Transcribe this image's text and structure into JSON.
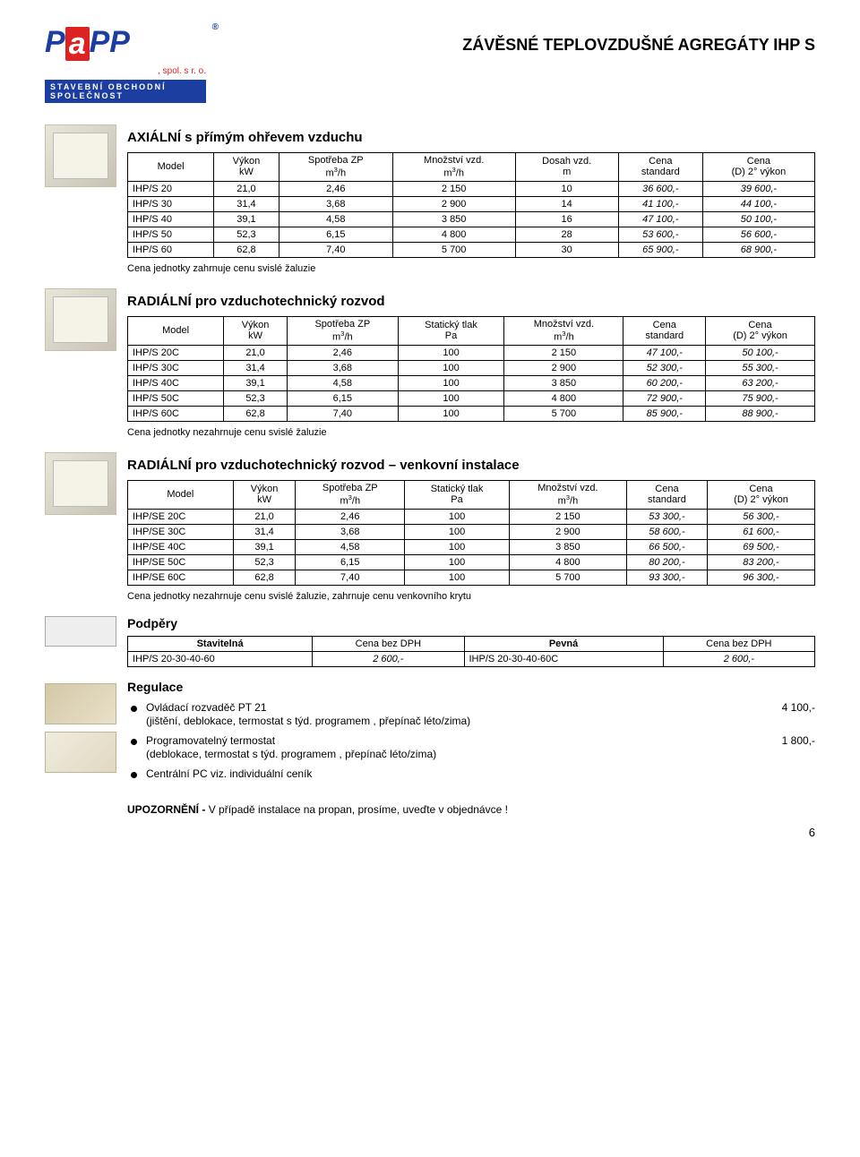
{
  "header": {
    "logo_text": "PaPP",
    "logo_sub": ", spol. s r. o.",
    "logo_tagline": "STAVEBNÍ  OBCHODNÍ  SPOLEČNOST",
    "doc_title": "ZÁVĚSNÉ TEPLOVZDUŠNÉ AGREGÁTY IHP S"
  },
  "sections": {
    "axial": {
      "title": "AXIÁLNÍ s přímým ohřevem vzduchu",
      "headers": [
        "Model",
        "Výkon\nkW",
        "Spotřeba ZP\nm³/h",
        "Množství vzd.\nm³/h",
        "Dosah vzd.\nm",
        "Cena\nstandard",
        "Cena\n(D) 2° výkon"
      ],
      "rows": [
        [
          "IHP/S 20",
          "21,0",
          "2,46",
          "2 150",
          "10",
          "36 600,-",
          "39 600,-"
        ],
        [
          "IHP/S 30",
          "31,4",
          "3,68",
          "2 900",
          "14",
          "41 100,-",
          "44 100,-"
        ],
        [
          "IHP/S 40",
          "39,1",
          "4,58",
          "3 850",
          "16",
          "47 100,-",
          "50 100,-"
        ],
        [
          "IHP/S 50",
          "52,3",
          "6,15",
          "4 800",
          "28",
          "53 600,-",
          "56 600,-"
        ],
        [
          "IHP/S 60",
          "62,8",
          "7,40",
          "5 700",
          "30",
          "65 900,-",
          "68 900,-"
        ]
      ],
      "note": "Cena jednotky zahrnuje cenu svislé žaluzie"
    },
    "radial": {
      "title": "RADIÁLNÍ pro vzduchotechnický rozvod",
      "headers": [
        "Model",
        "Výkon\nkW",
        "Spotřeba ZP\nm³/h",
        "Statický tlak\nPa",
        "Množství vzd.\nm³/h",
        "Cena\nstandard",
        "Cena\n(D) 2° výkon"
      ],
      "rows": [
        [
          "IHP/S 20C",
          "21,0",
          "2,46",
          "100",
          "2 150",
          "47 100,-",
          "50 100,-"
        ],
        [
          "IHP/S 30C",
          "31,4",
          "3,68",
          "100",
          "2 900",
          "52 300,-",
          "55 300,-"
        ],
        [
          "IHP/S 40C",
          "39,1",
          "4,58",
          "100",
          "3 850",
          "60 200,-",
          "63 200,-"
        ],
        [
          "IHP/S 50C",
          "52,3",
          "6,15",
          "100",
          "4 800",
          "72 900,-",
          "75 900,-"
        ],
        [
          "IHP/S 60C",
          "62,8",
          "7,40",
          "100",
          "5 700",
          "85 900,-",
          "88 900,-"
        ]
      ],
      "note": "Cena jednotky nezahrnuje cenu svislé žaluzie"
    },
    "radial_ext": {
      "title": "RADIÁLNÍ pro vzduchotechnický rozvod – venkovní instalace",
      "headers": [
        "Model",
        "Výkon\nkW",
        "Spotřeba ZP\nm³/h",
        "Statický tlak\nPa",
        "Množství vzd.\nm³/h",
        "Cena\nstandard",
        "Cena\n(D) 2° výkon"
      ],
      "rows": [
        [
          "IHP/SE 20C",
          "21,0",
          "2,46",
          "100",
          "2 150",
          "53 300,-",
          "56 300,-"
        ],
        [
          "IHP/SE 30C",
          "31,4",
          "3,68",
          "100",
          "2 900",
          "58 600,-",
          "61 600,-"
        ],
        [
          "IHP/SE 40C",
          "39,1",
          "4,58",
          "100",
          "3 850",
          "66 500,-",
          "69 500,-"
        ],
        [
          "IHP/SE 50C",
          "52,3",
          "6,15",
          "100",
          "4 800",
          "80 200,-",
          "83 200,-"
        ],
        [
          "IHP/SE 60C",
          "62,8",
          "7,40",
          "100",
          "5 700",
          "93 300,-",
          "96 300,-"
        ]
      ],
      "note": "Cena jednotky nezahrnuje cenu svislé žaluzie, zahrnuje cenu venkovního krytu"
    },
    "supports": {
      "title": "Podpěry",
      "headers": [
        "Stavitelná",
        "Cena bez DPH",
        "Pevná",
        "Cena bez DPH"
      ],
      "row": [
        "IHP/S 20-30-40-60",
        "2 600,-",
        "IHP/S 20-30-40-60C",
        "2 600,-"
      ]
    },
    "regulation": {
      "title": "Regulace",
      "items": [
        {
          "main": "Ovládací rozvaděč PT 21",
          "sub": "(jištění, deblokace, termostat s týd. programem , přepínač léto/zima)",
          "price": "4 100,-"
        },
        {
          "main": "Programovatelný termostat",
          "sub": "(deblokace, termostat s týd. programem , přepínač léto/zima)",
          "price": "1 800,-"
        },
        {
          "main": "Centrální PC viz. individuální ceník",
          "sub": "",
          "price": ""
        }
      ]
    }
  },
  "warning": {
    "label": "UPOZORNĚNÍ -",
    "text": "V případě instalace na propan, prosíme, uveďte v objednávce !"
  },
  "page_number": "6",
  "style": {
    "brand_blue": "#1b3ea0",
    "brand_red": "#d22",
    "border": "#000000",
    "bg": "#ffffff"
  }
}
